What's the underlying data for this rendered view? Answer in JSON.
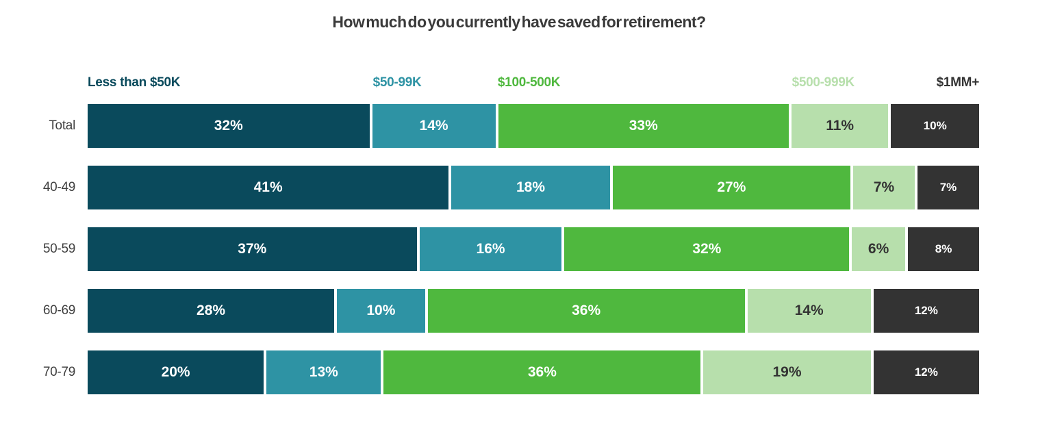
{
  "title": "How much do you currently have saved for retirement?",
  "chart_data": {
    "type": "bar",
    "orientation": "horizontal-stacked",
    "title": "How much do you currently have saved for retirement?",
    "categories": [
      "Total",
      "40-49",
      "50-59",
      "60-69",
      "70-79"
    ],
    "series": [
      {
        "name": "Less than $50K",
        "color": "#0a4a5c",
        "label_color": "#ffffff",
        "values": [
          32,
          41,
          37,
          28,
          20
        ]
      },
      {
        "name": "$50-99K",
        "color": "#2e93a4",
        "label_color": "#ffffff",
        "values": [
          14,
          18,
          16,
          10,
          13
        ]
      },
      {
        "name": "$100-500K",
        "color": "#4fb83e",
        "label_color": "#ffffff",
        "values": [
          33,
          27,
          32,
          36,
          36
        ]
      },
      {
        "name": "$500-999K",
        "color": "#b7dfac",
        "label_color": "#333333",
        "values": [
          11,
          7,
          6,
          14,
          19
        ]
      },
      {
        "name": "$1MM+",
        "color": "#333333",
        "label_color": "#ffffff",
        "values": [
          10,
          7,
          8,
          12,
          12
        ]
      }
    ],
    "value_suffix": "%",
    "legend_position": "top",
    "grid": false,
    "axis_labels_hidden": true
  }
}
